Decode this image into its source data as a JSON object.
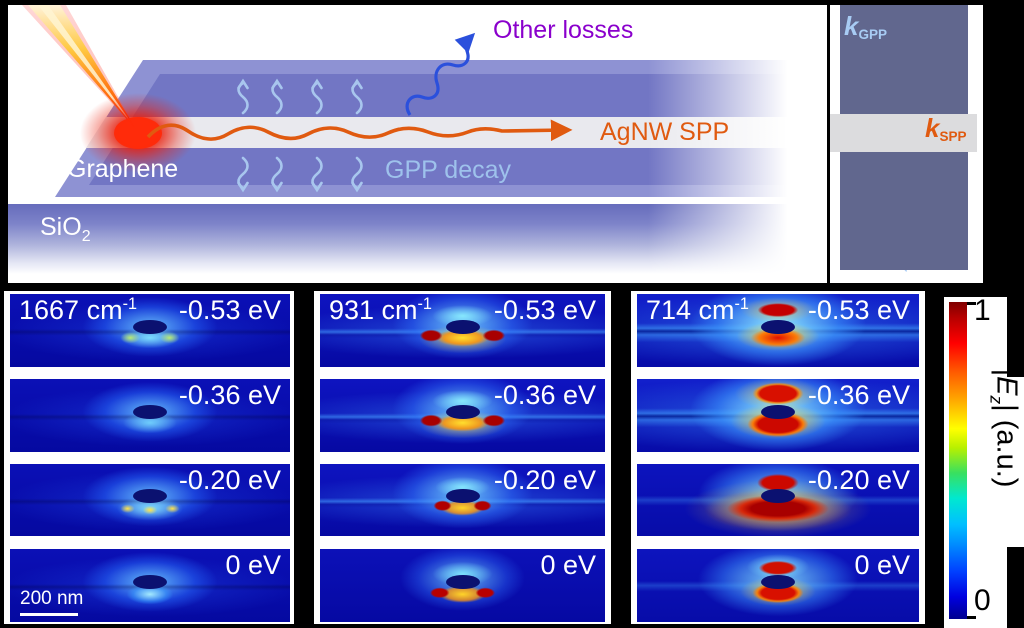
{
  "schematic": {
    "graphene_label": "Graphene",
    "substrate_label": {
      "base": "SiO",
      "sub": "2"
    },
    "other_losses_label": "Other losses",
    "agnw_spp_label": "AgNW SPP",
    "gpp_decay_label": "GPP decay",
    "colors": {
      "flake_edge": "#8e92d3",
      "flake_fill": "#7276c4",
      "nanowire_band": "#e9e9ee",
      "substrate_top": "#666cbc",
      "spp_orange": "#e05a10",
      "loss_arrow_blue": "#2b50dc",
      "decay_blue": "#a8c6ee",
      "other_losses_purple": "#8a00cc"
    }
  },
  "k_diagram": {
    "k_gpp": {
      "sym": "k",
      "sub": "GPP"
    },
    "k_spp": {
      "sym": "k",
      "sub": "SPP"
    },
    "colors": {
      "panel": "#61678e",
      "band": "#dcdcde",
      "gpp_arrow": "#a8ccf4",
      "spp_arrow": "#e05a10"
    }
  },
  "field_maps": {
    "scale_bar_label": "200 nm",
    "row_energies": [
      "-0.53 eV",
      "-0.36 eV",
      "-0.20 eV",
      "0 eV"
    ],
    "columns": [
      {
        "wavenumber": {
          "base": "1667 cm",
          "sup": "-1"
        },
        "intensity": "weak",
        "cells": [
          {
            "energy": "-0.53 eV"
          },
          {
            "energy": "-0.36 eV"
          },
          {
            "energy": "-0.20 eV"
          },
          {
            "energy": "0 eV"
          }
        ]
      },
      {
        "wavenumber": {
          "base": "931 cm",
          "sup": "-1"
        },
        "intensity": "medium",
        "cells": [
          {
            "energy": "-0.53 eV"
          },
          {
            "energy": "-0.36 eV"
          },
          {
            "energy": "-0.20 eV"
          },
          {
            "energy": "0 eV"
          }
        ]
      },
      {
        "wavenumber": {
          "base": "714 cm",
          "sup": "-1"
        },
        "intensity": "strong",
        "cells": [
          {
            "energy": "-0.53 eV"
          },
          {
            "energy": "-0.36 eV"
          },
          {
            "energy": "-0.20 eV"
          },
          {
            "energy": "0 eV"
          }
        ]
      }
    ]
  },
  "colorbar": {
    "max": "1",
    "min": "0",
    "label": {
      "pre": "|",
      "sym": "E",
      "sub": "z",
      "post": "| (a.u.)"
    }
  }
}
